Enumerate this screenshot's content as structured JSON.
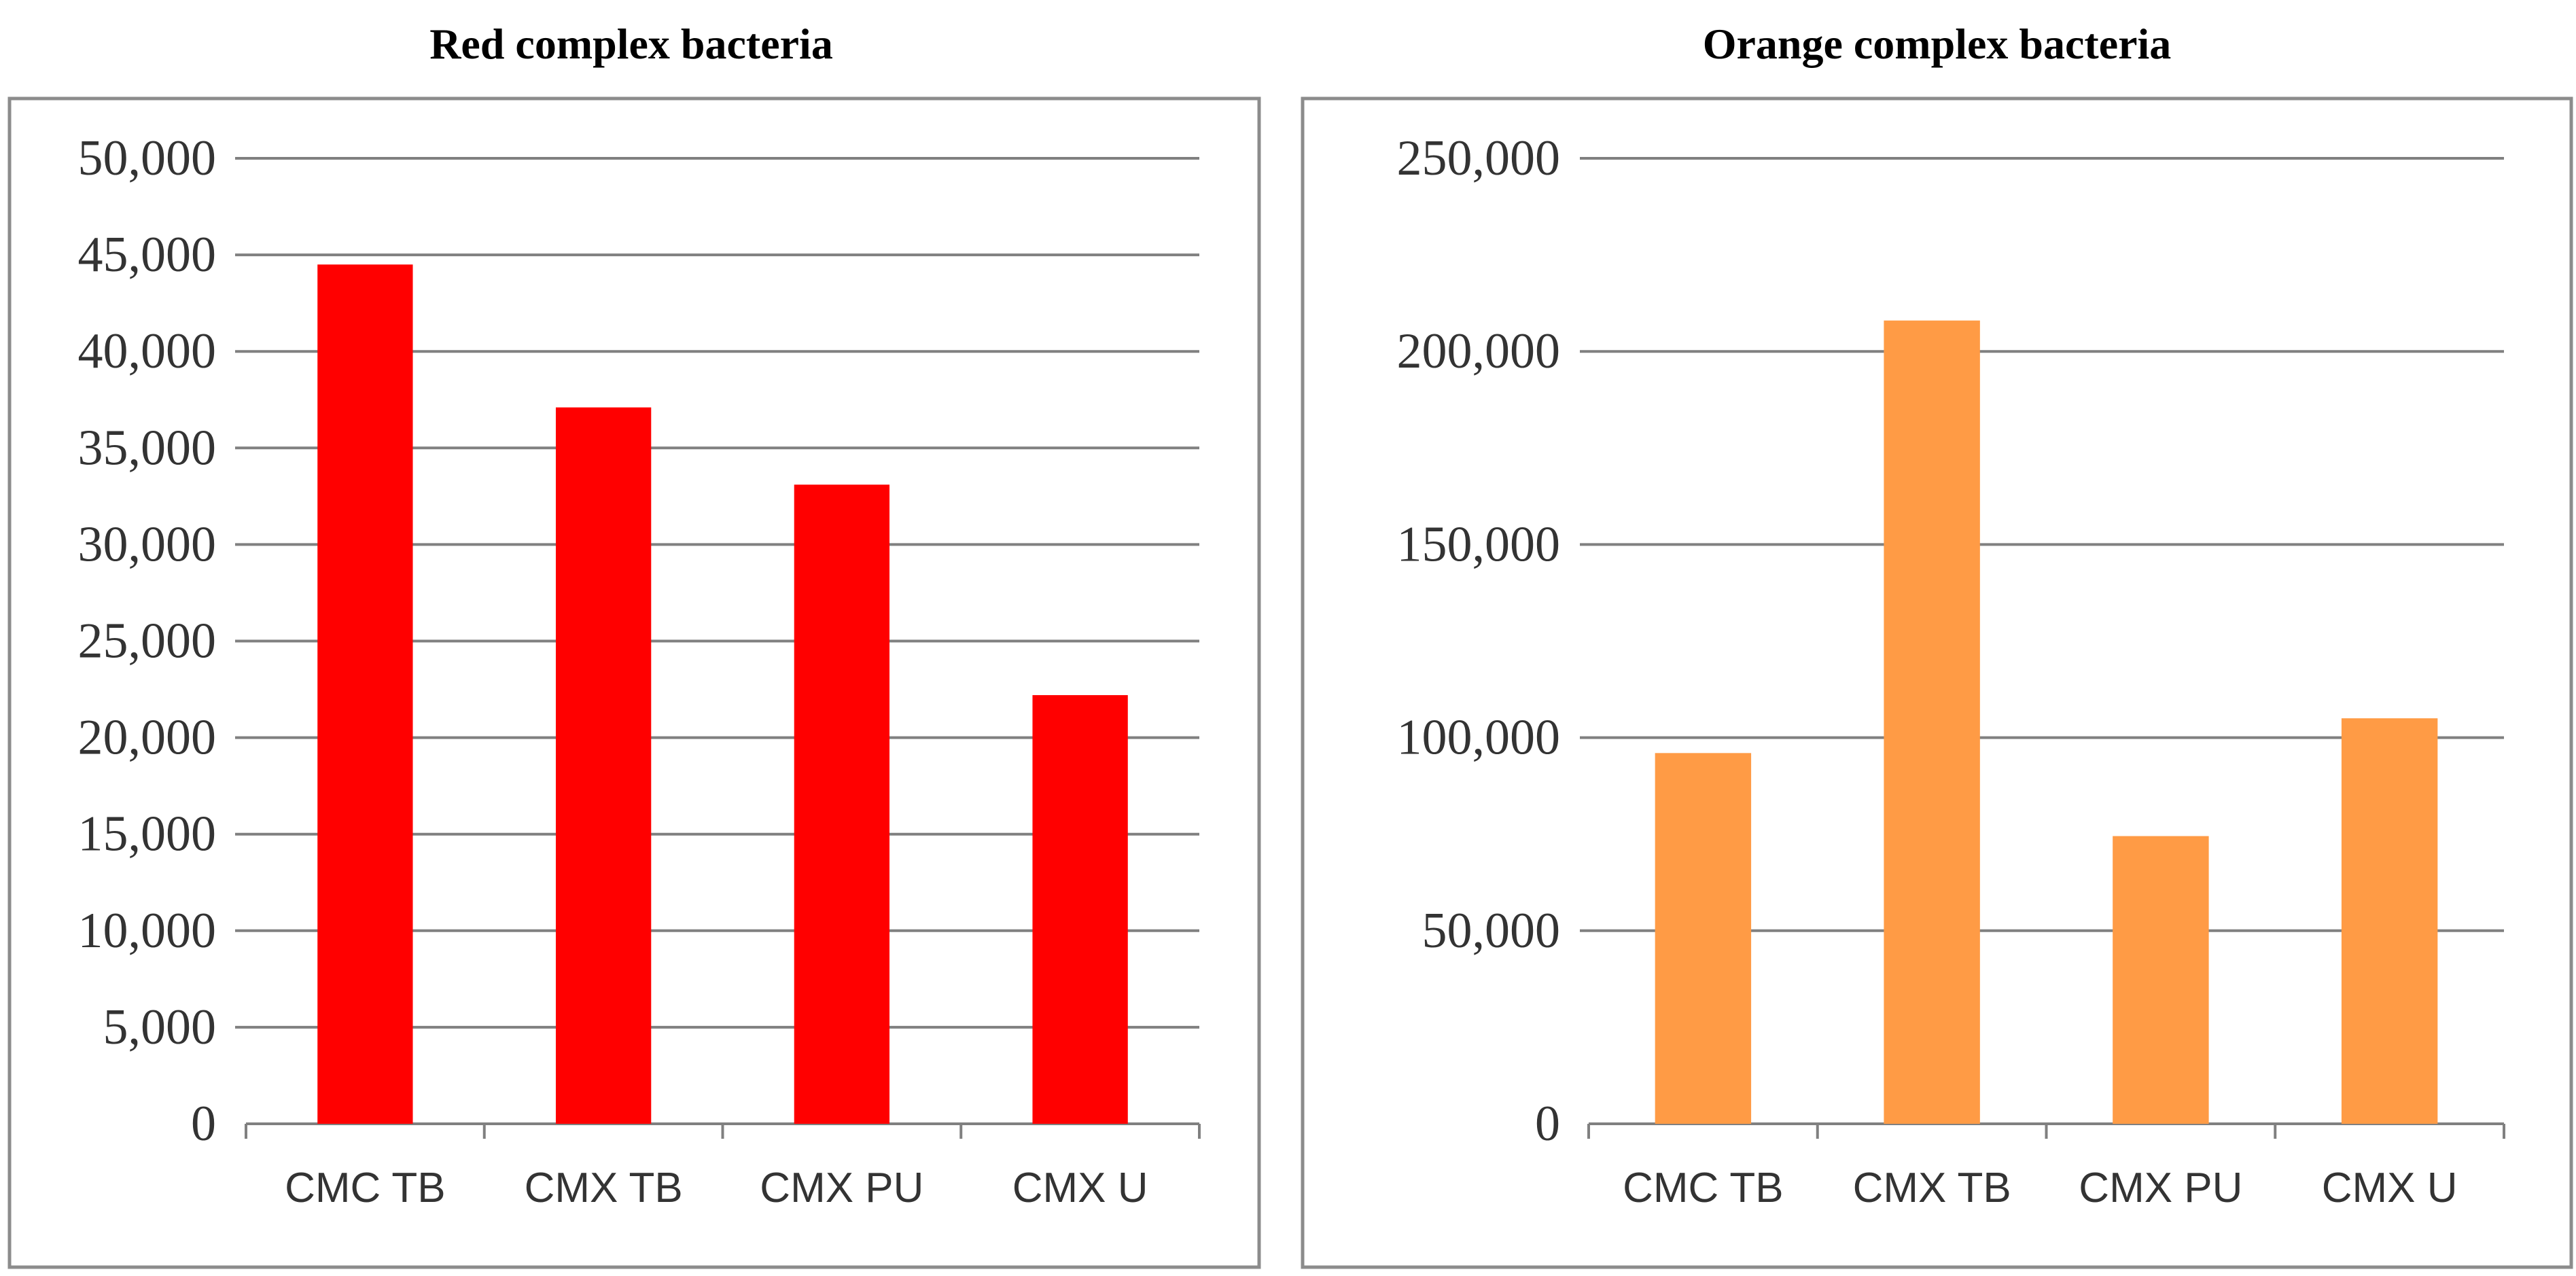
{
  "chart_data": [
    {
      "type": "bar",
      "title": "Red complex bacteria",
      "categories": [
        "CMC TB",
        "CMX TB",
        "CMX PU",
        "CMX U"
      ],
      "values": [
        44500,
        37100,
        33100,
        22200
      ],
      "ylim": [
        0,
        50000
      ],
      "yticks": [
        0,
        5000,
        10000,
        15000,
        20000,
        25000,
        30000,
        35000,
        40000,
        45000,
        50000
      ],
      "ytick_labels": [
        "0",
        "5,000",
        "10,000",
        "15,000",
        "20,000",
        "25,000",
        "30,000",
        "35,000",
        "40,000",
        "45,000",
        "50,000"
      ],
      "bar_color": "#ff0000",
      "grid": true,
      "xlabel": "",
      "ylabel": ""
    },
    {
      "type": "bar",
      "title": "Orange complex bacteria",
      "categories": [
        "CMC TB",
        "CMX TB",
        "CMX PU",
        "CMX U"
      ],
      "values": [
        96000,
        208000,
        74500,
        105000
      ],
      "ylim": [
        0,
        250000
      ],
      "yticks": [
        0,
        50000,
        100000,
        150000,
        200000,
        250000
      ],
      "ytick_labels": [
        "0",
        "50,000",
        "100,000",
        "150,000",
        "200,000",
        "250,000"
      ],
      "bar_color": "#ff9b45",
      "grid": true,
      "xlabel": "",
      "ylabel": ""
    }
  ]
}
